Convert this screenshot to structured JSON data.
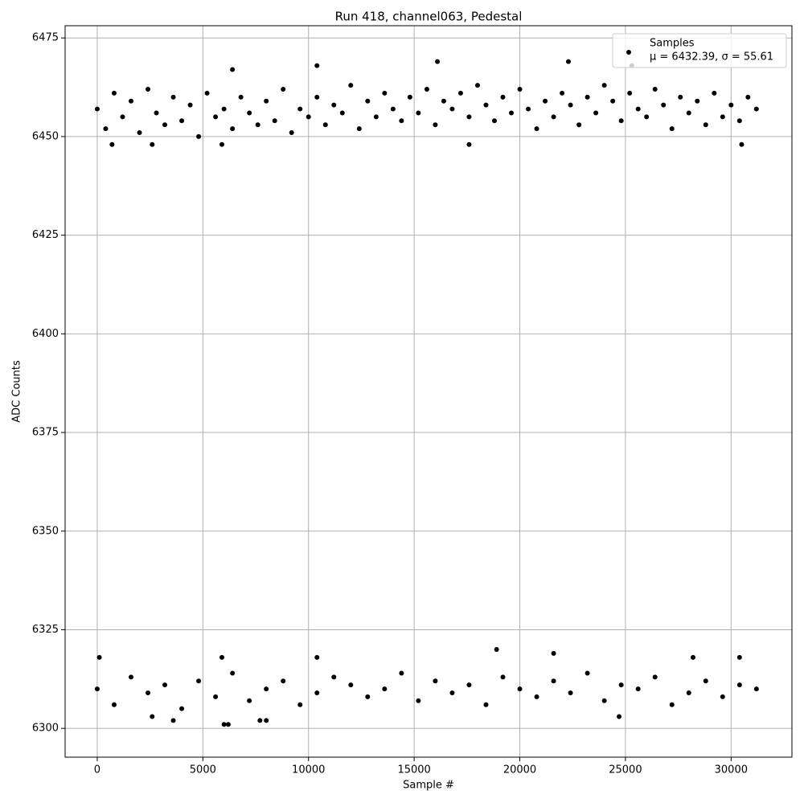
{
  "chart_data": {
    "type": "scatter",
    "title": "Run 418, channel063, Pedestal",
    "x_label": "Sample #",
    "y_label": "ADC Counts",
    "xlim": [
      -1520,
      32880
    ],
    "ylim": [
      6292.7,
      6478.1
    ],
    "xticks": [
      0,
      5000,
      10000,
      15000,
      20000,
      25000,
      30000
    ],
    "yticks": [
      6300,
      6325,
      6350,
      6375,
      6400,
      6425,
      6450,
      6475
    ],
    "grid": true,
    "legend_position": "upper right",
    "legend_note": "μ = 6432.39, σ = 55.61",
    "series": [
      {
        "name": "Samples",
        "color": "#000000",
        "x": [
          0,
          400,
          800,
          1200,
          1600,
          2000,
          2400,
          2800,
          3200,
          3600,
          4000,
          4400,
          4800,
          5200,
          5600,
          6000,
          6400,
          6800,
          7200,
          7600,
          8000,
          8400,
          8800,
          9200,
          9600,
          10000,
          10400,
          10800,
          11200,
          11600,
          12000,
          12400,
          12800,
          13200,
          13600,
          14000,
          14400,
          14800,
          15200,
          15600,
          16000,
          16400,
          16800,
          17200,
          17600,
          18000,
          18400,
          18800,
          19200,
          19600,
          20000,
          20400,
          20800,
          21200,
          21600,
          22000,
          22400,
          22800,
          23200,
          23600,
          24000,
          24400,
          24800,
          25200,
          25600,
          26000,
          26400,
          26800,
          27200,
          27600,
          28000,
          28400,
          28800,
          29200,
          29600,
          30000,
          30400,
          30800,
          31200,
          0,
          800,
          1600,
          2400,
          3200,
          4000,
          4800,
          5600,
          6400,
          7200,
          8000,
          8800,
          9600,
          10400,
          11200,
          12000,
          12800,
          13600,
          14400,
          15200,
          16000,
          16800,
          17600,
          18400,
          19200,
          20000,
          20800,
          21600,
          22400,
          23200,
          24000,
          24800,
          25600,
          26400,
          27200,
          28000,
          28800,
          29600,
          30400,
          31200,
          16100,
          22300,
          10400,
          6400,
          25300,
          700,
          2600,
          5900,
          17600,
          30500,
          18900,
          6000,
          6200,
          3600,
          2600,
          24700,
          21600,
          100,
          5900,
          10400,
          7700,
          8000,
          28200,
          30400
        ],
        "values": [
          6457,
          6452,
          6461,
          6455,
          6459,
          6451,
          6462,
          6456,
          6453,
          6460,
          6454,
          6458,
          6450,
          6461,
          6455,
          6457,
          6452,
          6460,
          6456,
          6453,
          6459,
          6454,
          6462,
          6451,
          6457,
          6455,
          6460,
          6453,
          6458,
          6456,
          6463,
          6452,
          6459,
          6455,
          6461,
          6457,
          6454,
          6460,
          6456,
          6462,
          6453,
          6459,
          6457,
          6461,
          6455,
          6463,
          6458,
          6454,
          6460,
          6456,
          6462,
          6457,
          6452,
          6459,
          6455,
          6461,
          6458,
          6453,
          6460,
          6456,
          6463,
          6459,
          6454,
          6461,
          6457,
          6455,
          6462,
          6458,
          6452,
          6460,
          6456,
          6459,
          6453,
          6461,
          6455,
          6458,
          6454,
          6460,
          6457,
          6310,
          6306,
          6313,
          6309,
          6311,
          6305,
          6312,
          6308,
          6314,
          6307,
          6310,
          6312,
          6306,
          6309,
          6313,
          6311,
          6308,
          6310,
          6314,
          6307,
          6312,
          6309,
          6311,
          6306,
          6313,
          6310,
          6308,
          6312,
          6309,
          6314,
          6307,
          6311,
          6310,
          6313,
          6306,
          6309,
          6312,
          6308,
          6311,
          6310,
          6469,
          6469,
          6468,
          6467,
          6468,
          6448,
          6448,
          6448,
          6448,
          6448,
          6320,
          6301,
          6301,
          6302,
          6303,
          6303,
          6319,
          6318,
          6318,
          6318,
          6302,
          6302,
          6318,
          6318
        ]
      }
    ]
  }
}
